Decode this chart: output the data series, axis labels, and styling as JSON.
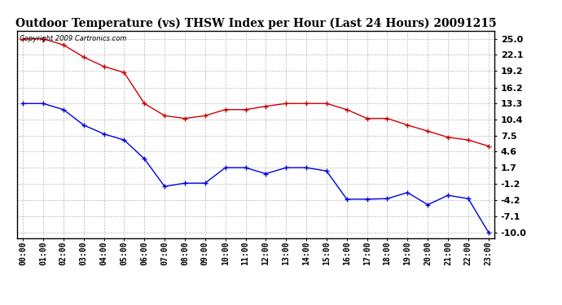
{
  "title": "Outdoor Temperature (vs) THSW Index per Hour (Last 24 Hours) 20091215",
  "copyright": "Copyright 2009 Cartronics.com",
  "hours": [
    "00:00",
    "01:00",
    "02:00",
    "03:00",
    "04:00",
    "05:00",
    "06:00",
    "07:00",
    "08:00",
    "09:00",
    "10:00",
    "11:00",
    "12:00",
    "13:00",
    "14:00",
    "15:00",
    "16:00",
    "17:00",
    "18:00",
    "19:00",
    "20:00",
    "21:00",
    "22:00",
    "23:00"
  ],
  "temp_blue": [
    13.3,
    13.3,
    12.2,
    9.4,
    7.8,
    6.7,
    3.3,
    -1.7,
    -1.1,
    -1.1,
    1.7,
    1.7,
    0.6,
    1.7,
    1.7,
    1.1,
    -4.0,
    -4.0,
    -3.9,
    -2.8,
    -5.0,
    -3.3,
    -3.9,
    -10.0
  ],
  "thsw_red": [
    25.0,
    25.0,
    23.9,
    21.7,
    20.0,
    18.9,
    13.3,
    11.1,
    10.6,
    11.1,
    12.2,
    12.2,
    12.8,
    13.3,
    13.3,
    13.3,
    12.2,
    10.6,
    10.6,
    9.4,
    8.3,
    7.2,
    6.7,
    5.6
  ],
  "y_ticks": [
    25.0,
    22.1,
    19.2,
    16.2,
    13.3,
    10.4,
    7.5,
    4.6,
    1.7,
    -1.2,
    -4.2,
    -7.1,
    -10.0
  ],
  "y_tick_labels": [
    "25.0",
    "22.1",
    "19.2",
    "16.2",
    "13.3",
    "10.4",
    "7.5",
    "4.6",
    "1.7",
    "-1.2",
    "-4.2",
    "-7.1",
    "-10.0"
  ],
  "ylim": [
    -11.0,
    26.5
  ],
  "bg_color": "#ffffff",
  "plot_bg": "#ffffff",
  "grid_color": "#bbbbbb",
  "blue_color": "#0000dd",
  "red_color": "#cc0000",
  "title_fontsize": 10,
  "copyright_fontsize": 6,
  "tick_fontsize": 8,
  "xtick_fontsize": 7
}
